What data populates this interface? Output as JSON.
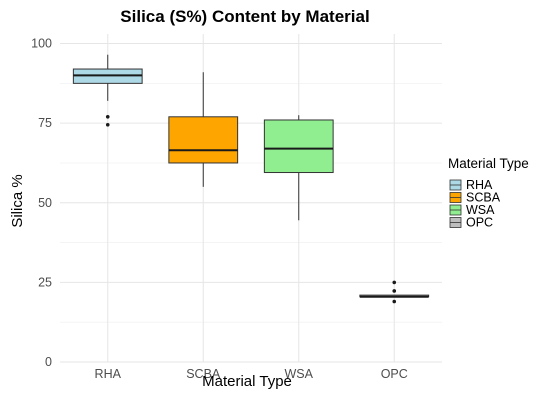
{
  "chart_data": {
    "type": "box",
    "title": "Silica (S%) Content by Material",
    "xlabel": "Material Type",
    "ylabel": "Silica %",
    "ylim": [
      0,
      103
    ],
    "yticks": [
      0,
      25,
      50,
      75,
      100
    ],
    "grid": true,
    "legend": {
      "title": "Material Type",
      "position": "right"
    },
    "categories": [
      "RHA",
      "SCBA",
      "WSA",
      "OPC"
    ],
    "boxes": [
      {
        "name": "RHA",
        "color": "#add8e6",
        "min": 82,
        "q1": 87.5,
        "median": 90,
        "q3": 92,
        "max": 96.5,
        "outliers": [
          77,
          74.5
        ]
      },
      {
        "name": "SCBA",
        "color": "#ffa500",
        "min": 55,
        "q1": 62.5,
        "median": 66.5,
        "q3": 77,
        "max": 91,
        "outliers": []
      },
      {
        "name": "WSA",
        "color": "#90ee90",
        "min": 44.5,
        "q1": 59.5,
        "median": 67,
        "q3": 76,
        "max": 77.5,
        "outliers": []
      },
      {
        "name": "OPC",
        "color": "#bebebe",
        "min": 20.5,
        "q1": 20.5,
        "median": 20.5,
        "q3": 21,
        "max": 21,
        "outliers": [
          25,
          22.3,
          19
        ]
      }
    ]
  }
}
